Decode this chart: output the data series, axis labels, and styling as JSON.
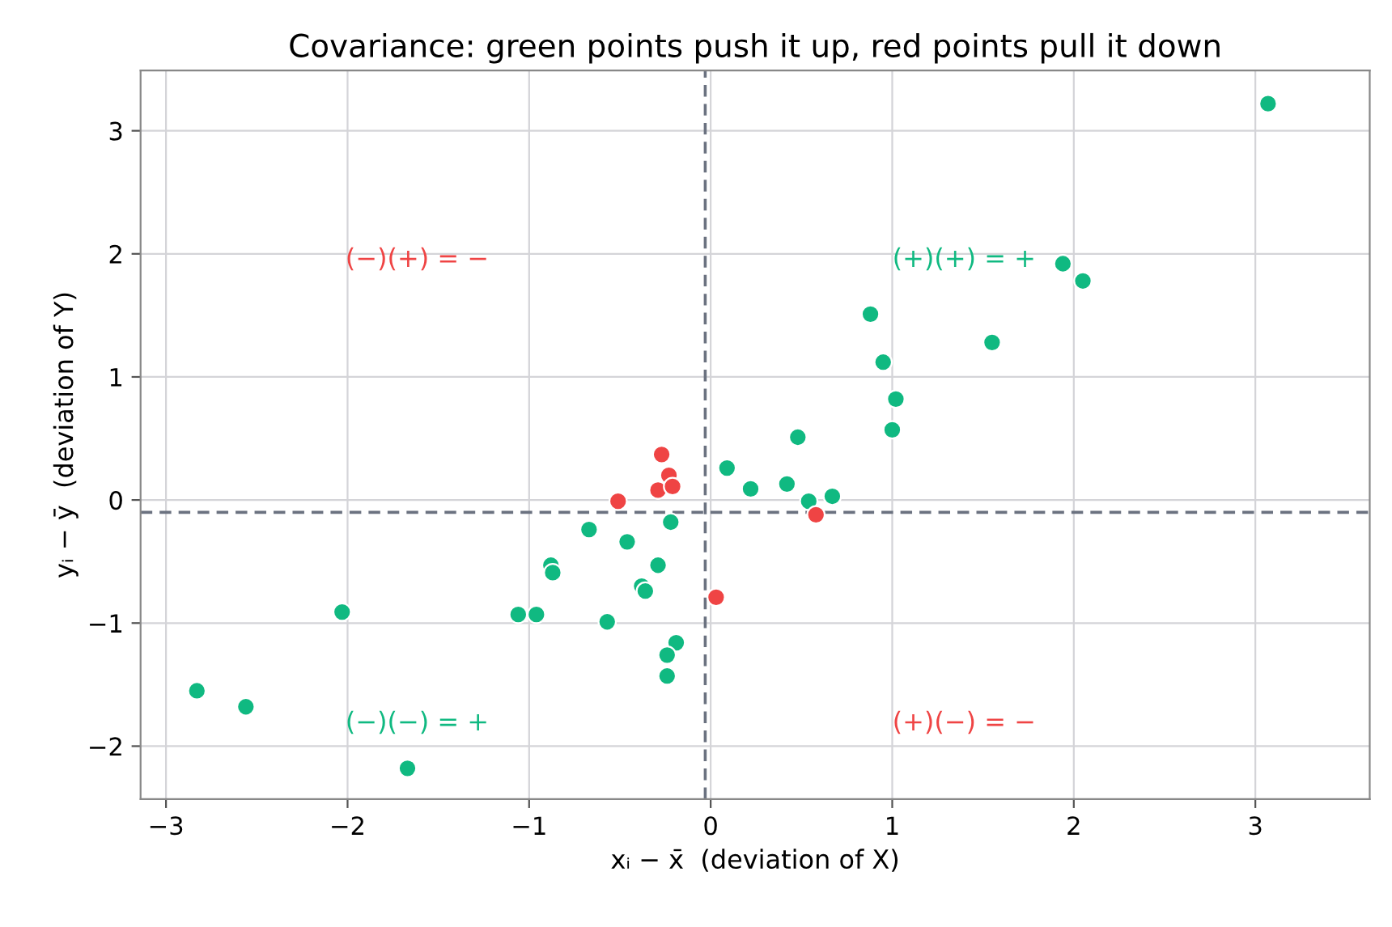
{
  "chart_data": {
    "type": "scatter",
    "title": "Covariance: green points push it up, red points pull it down",
    "xlabel": "xᵢ − x̄  (deviation of X)",
    "ylabel": "yᵢ − ȳ  (deviation of Y)",
    "series": [
      {
        "color": "#10b981",
        "x": [
          3.07,
          1.94,
          2.05,
          1.55,
          0.88,
          0.95,
          1.02,
          1.0,
          0.48,
          0.09,
          0.22,
          0.42,
          0.54,
          0.67,
          -0.22,
          -0.46,
          -0.67,
          -0.88,
          -0.87,
          -0.29,
          -0.38,
          -0.36,
          -1.06,
          -0.96,
          -0.57,
          -0.19,
          -0.24,
          -0.24,
          -2.03,
          -2.83,
          -2.56,
          -1.67
        ],
        "values": [
          3.22,
          1.92,
          1.78,
          1.28,
          1.51,
          1.12,
          0.82,
          0.57,
          0.51,
          0.26,
          0.09,
          0.13,
          -0.01,
          0.03,
          -0.18,
          -0.34,
          -0.24,
          -0.53,
          -0.59,
          -0.53,
          -0.7,
          -0.74,
          -0.93,
          -0.93,
          -0.99,
          -1.16,
          -1.26,
          -1.43,
          -0.91,
          -1.55,
          -1.68,
          -2.18
        ]
      },
      {
        "color": "#ef4444",
        "x": [
          -0.27,
          -0.23,
          -0.29,
          -0.21,
          -0.51,
          0.58,
          0.03
        ],
        "values": [
          0.37,
          0.2,
          0.08,
          0.11,
          -0.01,
          -0.12,
          -0.79
        ]
      }
    ],
    "annotations": [
      "(−)(+) = −",
      "(+)(+) = +",
      "(−)(−) = +",
      "(+)(−) = −"
    ],
    "ref_lines": [
      {
        "axis": "x",
        "value": -0.03,
        "color": "#6b7280",
        "line_style": "dashed"
      },
      {
        "axis": "y",
        "value": -0.1,
        "color": "#6b7280",
        "line_style": "dashed"
      }
    ],
    "xlim": [
      -3.14,
      3.63
    ],
    "ylim": [
      -2.43,
      3.49
    ],
    "xticks": [
      -3,
      -2,
      -1,
      0,
      1,
      2,
      3
    ],
    "yticks": [
      -2,
      -1,
      0,
      1,
      2,
      3
    ],
    "grid": true,
    "marker": "circle"
  }
}
